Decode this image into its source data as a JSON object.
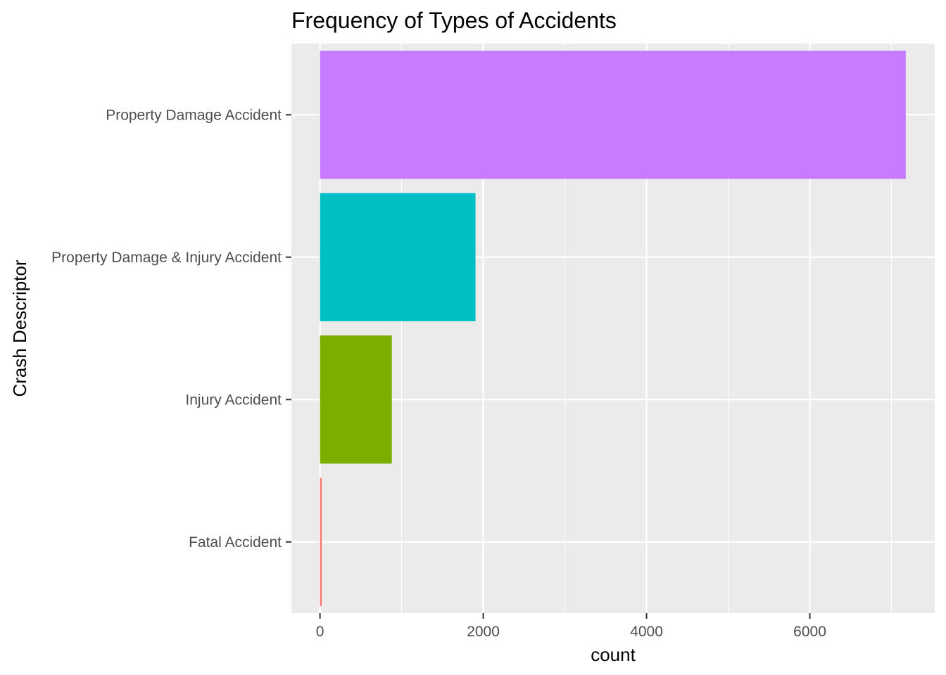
{
  "chart_data": {
    "type": "bar",
    "orientation": "horizontal",
    "title": "Frequency of Types of Accidents",
    "xlabel": "count",
    "ylabel": "Crash Descriptor",
    "categories": [
      "Fatal Accident",
      "Injury Accident",
      "Property Damage & Injury Accident",
      "Property Damage Accident"
    ],
    "values": [
      18,
      880,
      1905,
      7175
    ],
    "bar_colors": [
      "#F8766D",
      "#7CAE00",
      "#00BFC4",
      "#C77CFF"
    ],
    "x_ticks": [
      0,
      2000,
      4000,
      6000
    ],
    "xlim": [
      -350,
      7530
    ],
    "grid": true,
    "panel_background": "#EBEBEB",
    "grid_color": "#FFFFFF",
    "legend": "none"
  }
}
